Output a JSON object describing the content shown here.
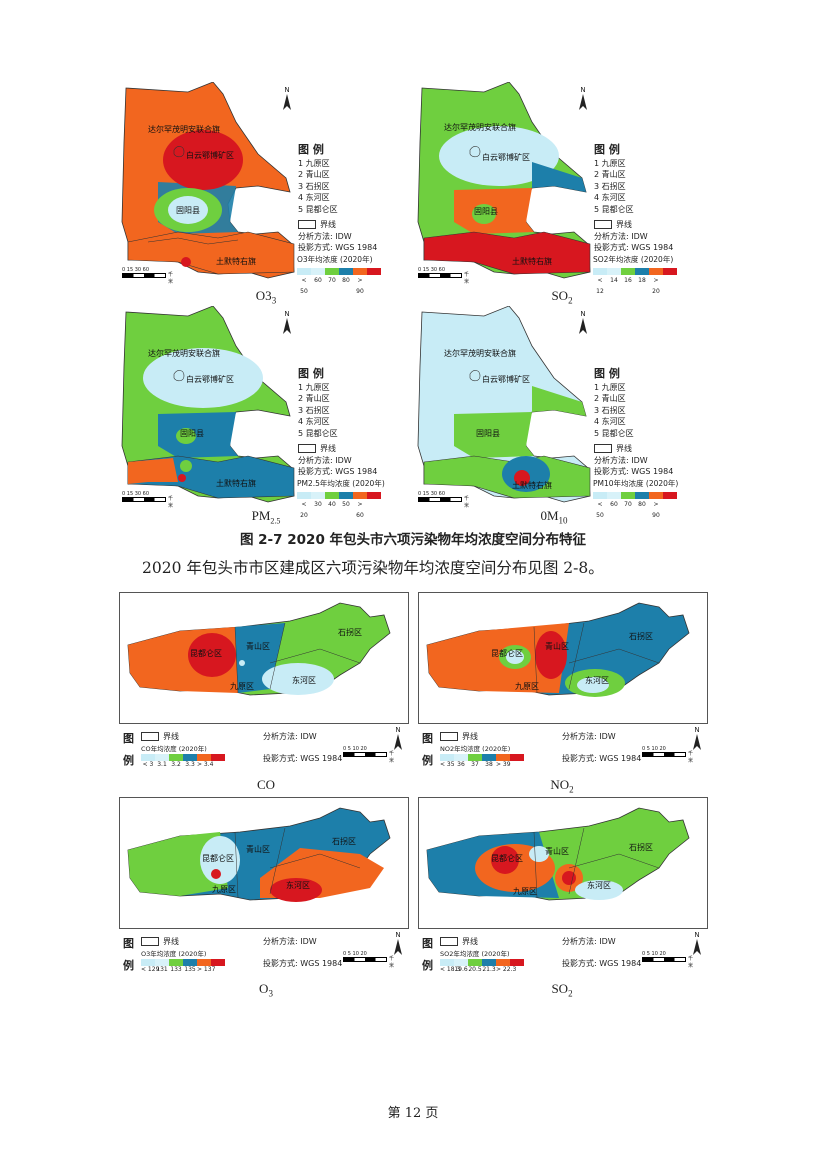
{
  "figure_top": {
    "title": "图 2-7 2020 年包头市六项污染物年均浓度空间分布特征",
    "legend_title": "图 例",
    "districts": [
      "1 九原区",
      "2 青山区",
      "3 石拐区",
      "4 东河区",
      "5 昆都仑区"
    ],
    "boundary_label": "界线",
    "method": "分析方法: IDW",
    "projection": "投影方式: WGS 1984",
    "place_labels": {
      "banner": "达尔罕茂明安联合旗",
      "mine": "白云鄂博矿区",
      "county": "固阳县",
      "tumote": "土默特右旗"
    },
    "scale_label": "千米",
    "scale_ticks": "0  15  30    60",
    "north": "N",
    "maps": [
      {
        "caption": "O3",
        "sub": "",
        "legend_name": "O3年均浓度 (2020年)",
        "ticks": [
          "< 50",
          "60",
          "70",
          "80",
          "> 90"
        ],
        "colors": [
          "#c8ecf6",
          "#c8ecf6",
          "#6fcf3f",
          "#1d7faa",
          "#f2661f",
          "#d7171f"
        ]
      },
      {
        "caption": "SO",
        "sub": "2",
        "legend_name": "SO2年均浓度 (2020年)",
        "ticks": [
          "< 12",
          "14",
          "16",
          "18",
          "> 20"
        ],
        "colors": [
          "#c8ecf6",
          "#c8ecf6",
          "#6fcf3f",
          "#1d7faa",
          "#f2661f",
          "#d7171f"
        ]
      },
      {
        "caption": "PM",
        "sub": "2.5",
        "legend_name": "PM2.5年均浓度 (2020年)",
        "ticks": [
          "< 20",
          "30",
          "40",
          "50",
          "> 60"
        ],
        "colors": [
          "#c8ecf6",
          "#c8ecf6",
          "#6fcf3f",
          "#1d7faa",
          "#f2661f",
          "#d7171f"
        ]
      },
      {
        "caption": "0M",
        "sub": "10",
        "legend_name": "PM10年均浓度 (2020年)",
        "ticks": [
          "< 50",
          "60",
          "70",
          "80",
          "> 90"
        ],
        "colors": [
          "#c8ecf6",
          "#c8ecf6",
          "#6fcf3f",
          "#1d7faa",
          "#f2661f",
          "#d7171f"
        ]
      }
    ]
  },
  "paragraph": "2020 年包头市市区建成区六项污染物年均浓度空间分布见图 2-8。",
  "figure_bottom": {
    "legend_tu": "图",
    "legend_li": "例",
    "boundary_label": "界线",
    "method": "分析方法: IDW",
    "projection": "投影方式: WGS 1984",
    "scale_ticks": "0  5  10    20",
    "scale_label": "千米",
    "north": "N",
    "district_labels": {
      "kundulun": "昆都仑区",
      "qingshan": "青山区",
      "shiguai": "石拐区",
      "donghe": "东河区",
      "jiuyuan": "九原区"
    },
    "maps": [
      {
        "caption": "CO",
        "sub": "",
        "legend_name": "CO年均浓度 (2020年)",
        "ticks": [
          "< 3",
          "3.1",
          "3.2",
          "3.3",
          "> 3.4"
        ]
      },
      {
        "caption": "NO",
        "sub": "2",
        "legend_name": "NO2年均浓度 (2020年)",
        "ticks": [
          "< 35",
          "36",
          "37",
          "38",
          "> 39"
        ]
      },
      {
        "caption": "O",
        "sub": "3",
        "legend_name": "O3年均浓度 (2020年)",
        "ticks": [
          "< 129",
          "131",
          "133",
          "135",
          "> 137"
        ]
      },
      {
        "caption": "SO",
        "sub": "2",
        "legend_name": "SO2年均浓度 (2020年)",
        "ticks": [
          "< 18.3",
          "19.6",
          "20.5",
          "21.3",
          "> 22.3"
        ]
      }
    ]
  },
  "page_number": "第 12 页"
}
